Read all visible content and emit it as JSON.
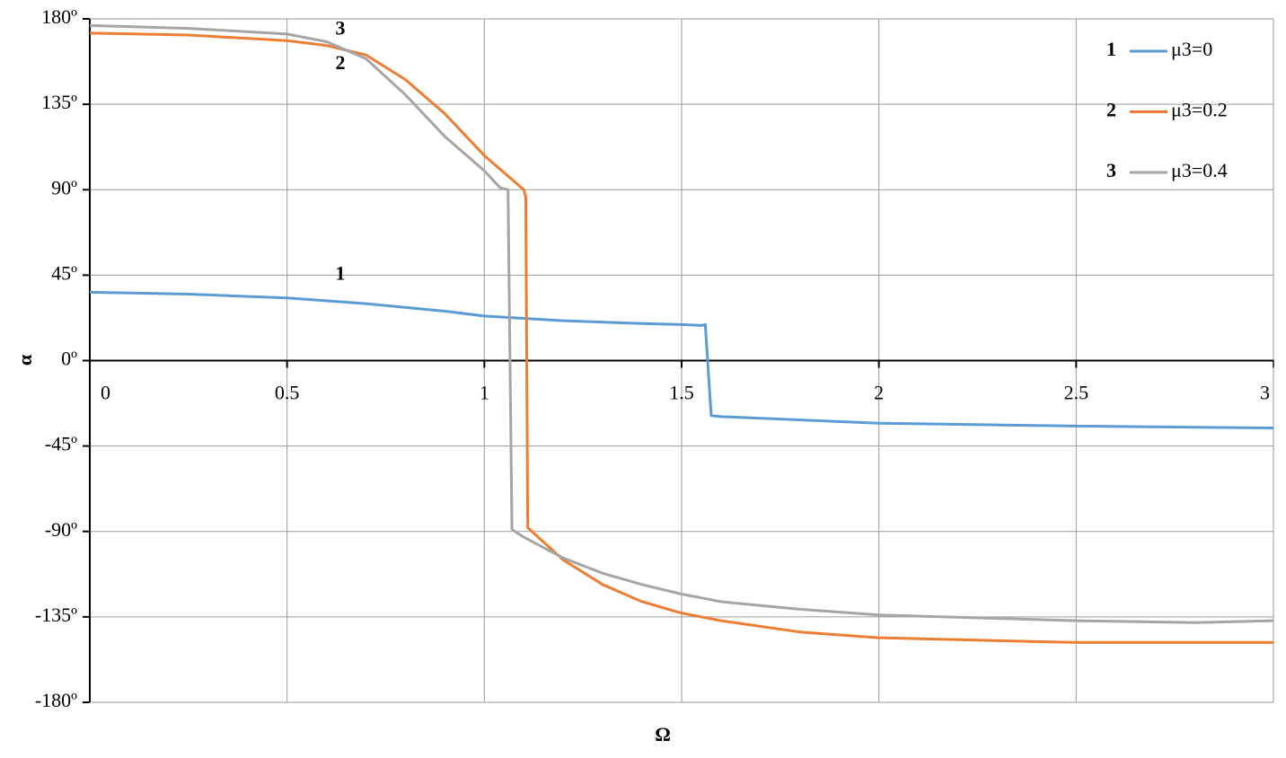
{
  "chart_data": {
    "type": "line",
    "xlabel": "Ω",
    "ylabel": "α",
    "xlim": [
      0,
      3
    ],
    "ylim": [
      -180,
      180
    ],
    "xticks": [
      0,
      0.5,
      1,
      1.5,
      2,
      2.5,
      3
    ],
    "yticks": [
      {
        "value": -180,
        "label": "-180º"
      },
      {
        "value": -135,
        "label": "-135º"
      },
      {
        "value": -90,
        "label": "-90º"
      },
      {
        "value": -45,
        "label": "-45º"
      },
      {
        "value": 0,
        "label": "0º"
      },
      {
        "value": 45,
        "label": "45º"
      },
      {
        "value": 90,
        "label": "90º"
      },
      {
        "value": 135,
        "label": "135º"
      },
      {
        "value": 180,
        "label": "180º"
      }
    ],
    "grid": true,
    "legend": "top-right",
    "series": [
      {
        "name": "μ3=0",
        "label": "1",
        "color": "#5b9bd5",
        "x": [
          0,
          0.25,
          0.5,
          0.7,
          0.9,
          1.0,
          1.2,
          1.4,
          1.5,
          1.55,
          1.56,
          1.575,
          1.6,
          2.0,
          2.5,
          3.0
        ],
        "values": [
          36,
          35,
          33,
          30,
          26,
          23.5,
          21,
          19.5,
          19,
          18.5,
          19,
          -29,
          -29.5,
          -33,
          -34.5,
          -35.5
        ]
      },
      {
        "name": "μ3=0.2",
        "label": "2",
        "color": "#ed7d31",
        "x": [
          0,
          0.25,
          0.5,
          0.6,
          0.7,
          0.8,
          0.9,
          1.0,
          1.1,
          1.105,
          1.11,
          1.2,
          1.3,
          1.4,
          1.5,
          1.6,
          1.8,
          2.0,
          2.5,
          3.0
        ],
        "values": [
          172.5,
          171.5,
          168.5,
          166,
          161,
          148,
          130,
          108,
          90,
          86,
          -88,
          -105,
          -118,
          -127,
          -133,
          -137,
          -143,
          -146,
          -148.5,
          -148.5
        ]
      },
      {
        "name": "μ3=0.4",
        "label": "3",
        "color": "#a5a5a5",
        "x": [
          0,
          0.25,
          0.5,
          0.6,
          0.7,
          0.8,
          0.9,
          1.0,
          1.04,
          1.06,
          1.07,
          1.1,
          1.2,
          1.3,
          1.4,
          1.5,
          1.6,
          1.8,
          2.0,
          2.5,
          2.8,
          3.0
        ],
        "values": [
          176.5,
          175,
          172,
          168,
          159,
          140,
          118,
          100,
          91,
          90,
          -89,
          -93,
          -104,
          -112,
          -118,
          -123,
          -127,
          -131,
          -134,
          -137,
          -138,
          -137
        ]
      }
    ],
    "annotations": [
      {
        "text": "3",
        "x": 0.635,
        "y": 174
      },
      {
        "text": "2",
        "x": 0.635,
        "y": 156
      },
      {
        "text": "1",
        "x": 0.635,
        "y": 45
      }
    ]
  }
}
